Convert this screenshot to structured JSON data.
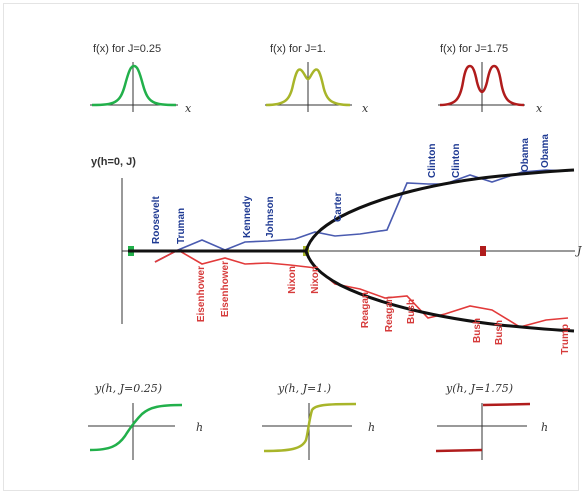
{
  "colors": {
    "green": "#22b04b",
    "olive": "#a8b52a",
    "darkred": "#b01c1c",
    "blue": "#4a5bb0",
    "red": "#e23a3a",
    "black": "#111111"
  },
  "top_panels": [
    {
      "title": "f(x) for J=0.25",
      "xlabel": "x"
    },
    {
      "title": "f(x) for J=1.",
      "xlabel": "x"
    },
    {
      "title": "f(x) for J=1.75",
      "xlabel": "x"
    }
  ],
  "main": {
    "ylabel": "y(h=0, J)",
    "right_axis_label": "J",
    "upper_labels": [
      "Roosevelt",
      "Truman",
      "Kennedy",
      "Johnson",
      "Carter",
      "Clinton",
      "Clinton",
      "Obama",
      "Obama"
    ],
    "lower_labels": [
      "Eisenhower",
      "Eisenhower",
      "Nixon",
      "Nixon",
      "Reagan",
      "Reagan",
      "Bush",
      "Bush",
      "Bush",
      "Trump"
    ]
  },
  "bottom_panels": [
    {
      "title": "y(h, J=0.25)",
      "xlabel": "h"
    },
    {
      "title": "y(h, J=1.)",
      "xlabel": "h"
    },
    {
      "title": "y(h, J=1.75)",
      "xlabel": "h"
    }
  ]
}
